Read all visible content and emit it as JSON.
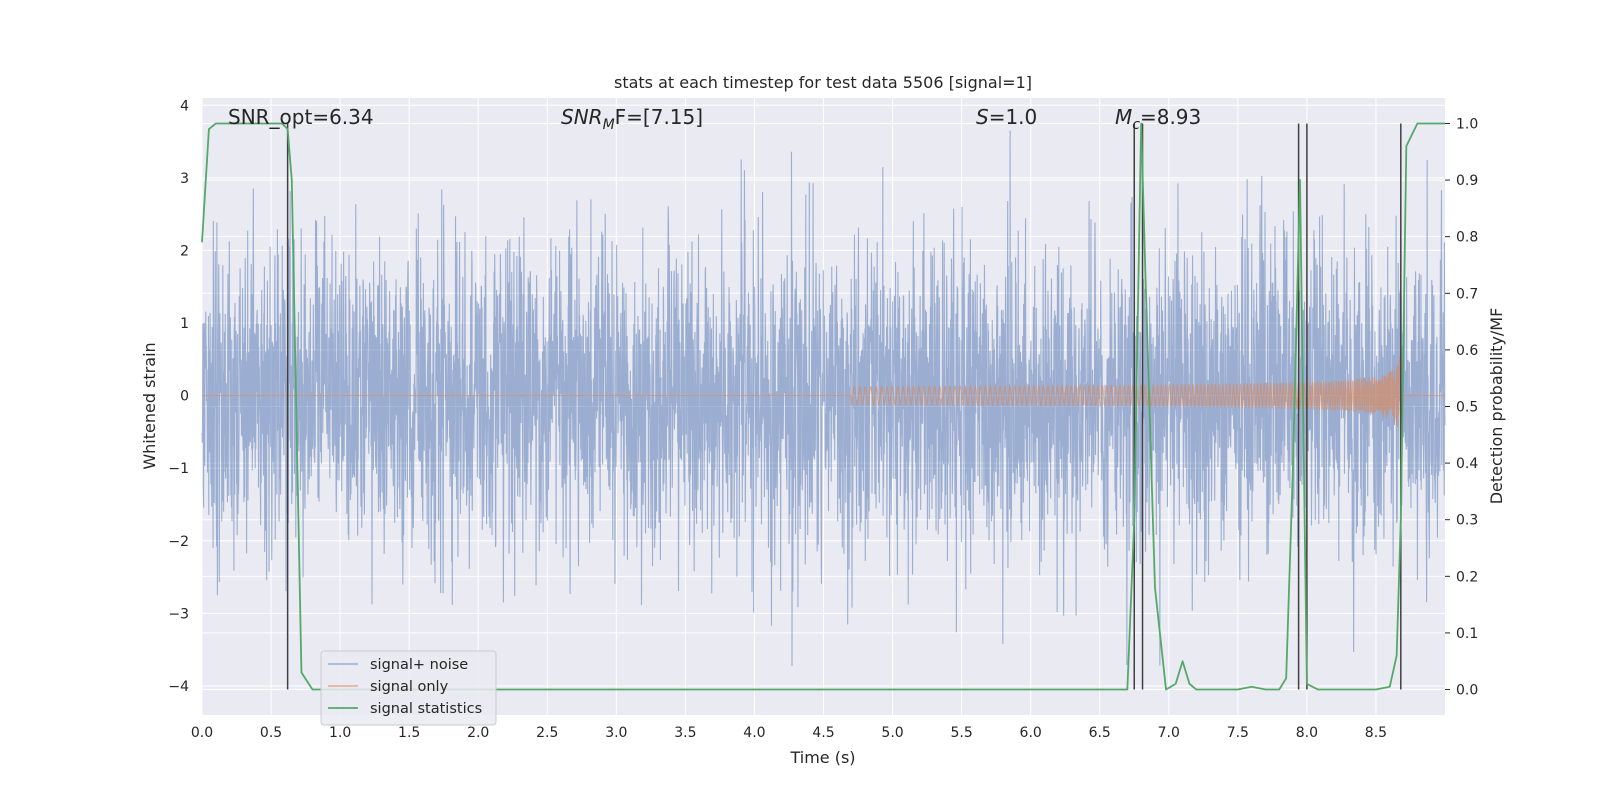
{
  "chart_data": {
    "type": "line",
    "title": "stats at each timestep for test data 5506 [signal=1]",
    "xlabel": "Time (s)",
    "ylabel": "Whitened strain",
    "y2label": "Detection probability/MF",
    "xlim": [
      0.0,
      9.0
    ],
    "ylim": [
      -4.4,
      4.1
    ],
    "y2lim": [
      -0.045,
      1.045
    ],
    "xticks": [
      0.0,
      0.5,
      1.0,
      1.5,
      2.0,
      2.5,
      3.0,
      3.5,
      4.0,
      4.5,
      5.0,
      5.5,
      6.0,
      6.5,
      7.0,
      7.5,
      8.0,
      8.5
    ],
    "xtick_labels": [
      "0.0",
      "0.5",
      "1.0",
      "1.5",
      "2.0",
      "2.5",
      "3.0",
      "3.5",
      "4.0",
      "4.5",
      "5.0",
      "5.5",
      "6.0",
      "6.5",
      "7.0",
      "7.5",
      "8.0",
      "8.5"
    ],
    "yticks": [
      -4,
      -3,
      -2,
      -1,
      0,
      1,
      2,
      3,
      4
    ],
    "ytick_labels": [
      "−4",
      "−3",
      "−2",
      "−1",
      "0",
      "1",
      "2",
      "3",
      "4"
    ],
    "y2ticks": [
      0.0,
      0.1,
      0.2,
      0.3,
      0.4,
      0.5,
      0.6,
      0.7,
      0.8,
      0.9,
      1.0
    ],
    "y2tick_labels": [
      "0.0",
      "0.1",
      "0.2",
      "0.3",
      "0.4",
      "0.5",
      "0.6",
      "0.7",
      "0.8",
      "0.9",
      "1.0"
    ],
    "grid": true,
    "legend_position": "bottom-left",
    "annotations": {
      "snr_opt": "SNR_opt=6.34",
      "snr_mf_base": "SNR",
      "snr_mf_sub": "M",
      "snr_mf_rest": "F=[7.15]",
      "s_var": "S",
      "s_rest": "=1.0",
      "mc_var": "M",
      "mc_sub": "c",
      "mc_rest": "=8.93"
    },
    "series": [
      {
        "name": "signal+ noise",
        "color": "#4c72b0",
        "description_kind": "noise",
        "envelope_seed": 5506
      },
      {
        "name": "signal only",
        "color": "#dd8452",
        "chirp": {
          "start": 4.7,
          "end": 8.68,
          "peak_amplitude": 0.58
        }
      },
      {
        "name": "signal statistics",
        "color": "#55a868",
        "x": [
          0.0,
          0.05,
          0.1,
          0.2,
          0.3,
          0.4,
          0.5,
          0.58,
          0.62,
          0.65,
          0.72,
          0.8,
          1.0,
          2.0,
          3.0,
          4.0,
          5.0,
          6.0,
          6.5,
          6.7,
          6.75,
          6.8,
          6.83,
          6.9,
          6.98,
          7.05,
          7.1,
          7.15,
          7.2,
          7.3,
          7.5,
          7.6,
          7.7,
          7.8,
          7.85,
          7.9,
          7.95,
          8.0,
          8.08,
          8.12,
          8.15,
          8.3,
          8.5,
          8.6,
          8.65,
          8.68,
          8.72,
          8.8,
          8.85,
          9.0
        ],
        "values": [
          0.79,
          0.99,
          1.0,
          1.0,
          1.0,
          1.0,
          1.0,
          1.0,
          0.99,
          0.9,
          0.03,
          0.0,
          0.0,
          0.0,
          0.0,
          0.0,
          0.0,
          0.0,
          0.0,
          0.0,
          0.3,
          1.0,
          0.74,
          0.18,
          0.0,
          0.01,
          0.05,
          0.01,
          0.0,
          0.0,
          0.0,
          0.005,
          0.0,
          0.0,
          0.02,
          0.4,
          0.9,
          0.01,
          0.0,
          0.0,
          0.0,
          0.0,
          0.0,
          0.005,
          0.06,
          0.3,
          0.96,
          1.0,
          1.0,
          1.0
        ]
      }
    ],
    "vertical_lines": {
      "color": "#404040",
      "x": [
        0.62,
        6.75,
        6.81,
        7.94,
        8.0,
        8.68
      ]
    }
  }
}
